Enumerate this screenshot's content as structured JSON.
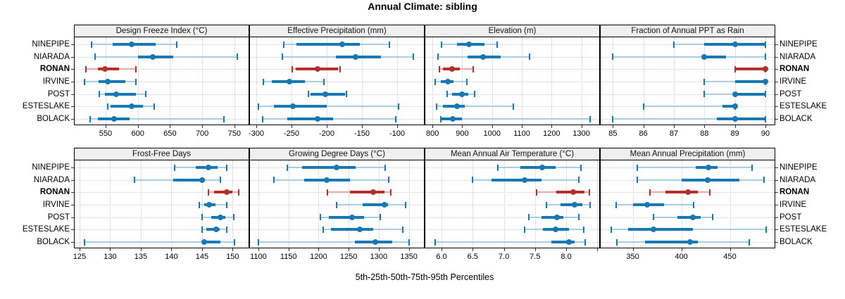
{
  "title": "Annual Climate: sibling",
  "caption": "5th-25th-50th-75th-95th Percentiles",
  "stations": [
    "NINEPIPE",
    "NIARADA",
    "RONAN",
    "IRVINE",
    "POST",
    "ESTESLAKE",
    "BOLACK"
  ],
  "highlight_station": "RONAN",
  "colors": {
    "blue_dark": "#1878b4",
    "blue_light": "#a9cee4",
    "red_dark": "#b2312b",
    "red_light": "#e3aba7",
    "header_bg": "#f0f0f0",
    "panel_border": "#000000",
    "grid": "#c9c9c9"
  },
  "chart_data": {
    "type": "dotplot-percentile-whiskers",
    "percentile_labels": [
      "5th",
      "25th",
      "50th",
      "75th",
      "95th"
    ],
    "legend_note": "thin light line = 5th-95th, thick bar = 25th-75th, dot = 50th percentile",
    "grid": "dotted",
    "panels": [
      {
        "title": "Design Freeze Index (°C)",
        "row": 0,
        "col": 0,
        "xlim": [
          502,
          772
        ],
        "ticks": [
          550,
          600,
          650,
          700,
          750
        ],
        "tick_labels": [
          "550",
          "600",
          "650",
          "700",
          "750"
        ],
        "series": [
          [
            528,
            561,
            590,
            628,
            660
          ],
          [
            534,
            600,
            623,
            655,
            754
          ],
          [
            519,
            538,
            549,
            571,
            597
          ],
          [
            517,
            539,
            553,
            581,
            597
          ],
          [
            540,
            549,
            566,
            597,
            612
          ],
          [
            553,
            558,
            591,
            608,
            626
          ],
          [
            526,
            538,
            563,
            587,
            734
          ]
        ]
      },
      {
        "title": "Effective Precipitation (mm)",
        "row": 0,
        "col": 1,
        "xlim": [
          -309,
          -62
        ],
        "ticks": [
          -300,
          -250,
          -200,
          -150,
          -100
        ],
        "tick_labels": [
          "-300",
          "-250",
          "-200",
          "-150",
          "-100"
        ],
        "series": [
          [
            -261,
            -243,
            -178,
            -153,
            -111
          ],
          [
            -263,
            -187,
            -159,
            -123,
            -77
          ],
          [
            -249,
            -244,
            -213,
            -184,
            -181
          ],
          [
            -290,
            -278,
            -253,
            -231,
            -204
          ],
          [
            -226,
            -223,
            -202,
            -174,
            -172
          ],
          [
            -297,
            -275,
            -248,
            -200,
            -98
          ],
          [
            -291,
            -256,
            -213,
            -191,
            -102
          ]
        ]
      },
      {
        "title": "Elevation (m)",
        "row": 0,
        "col": 2,
        "xlim": [
          776,
          1360
        ],
        "ticks": [
          800,
          900,
          1000,
          1100,
          1200,
          1300
        ],
        "tick_labels": [
          "800",
          "900",
          "1000",
          "1100",
          "1200",
          "1300"
        ],
        "series": [
          [
            830,
            882,
            922,
            975,
            1018
          ],
          [
            818,
            918,
            969,
            1028,
            1127
          ],
          [
            824,
            836,
            867,
            893,
            936
          ],
          [
            810,
            828,
            851,
            871,
            916
          ],
          [
            850,
            867,
            900,
            920,
            942
          ],
          [
            813,
            836,
            883,
            908,
            1072
          ],
          [
            828,
            831,
            869,
            900,
            1329
          ]
        ]
      },
      {
        "title": "Fraction of Annual PPT as Rain",
        "row": 0,
        "col": 3,
        "xlim": [
          84.6,
          90.3
        ],
        "ticks": [
          85,
          86,
          87,
          88,
          89,
          90
        ],
        "tick_labels": [
          "85",
          "86",
          "87",
          "88",
          "89",
          "90"
        ],
        "series": [
          [
            87,
            88,
            89,
            90,
            90
          ],
          [
            85,
            88,
            88,
            88.7,
            90
          ],
          [
            89,
            89,
            90,
            90,
            90
          ],
          [
            88,
            89,
            90,
            90,
            90
          ],
          [
            88,
            89,
            89,
            90,
            90
          ],
          [
            86,
            88.6,
            89,
            89,
            89
          ],
          [
            85,
            88.4,
            89,
            90,
            90
          ]
        ]
      },
      {
        "title": "Frost-Free Days",
        "row": 1,
        "col": 0,
        "xlim": [
          124.2,
          152.6
        ],
        "ticks": [
          125,
          130,
          135,
          140,
          145,
          150
        ],
        "tick_labels": [
          "125",
          "130",
          "135",
          "140",
          "145",
          "150"
        ],
        "series": [
          [
            140.5,
            144,
            146,
            147.5,
            149
          ],
          [
            134,
            140.3,
            145,
            145.5,
            148
          ],
          [
            146,
            147,
            149,
            150,
            151
          ],
          [
            144.5,
            145.3,
            146.2,
            147.2,
            149
          ],
          [
            145,
            146.5,
            148,
            148.8,
            150.2
          ],
          [
            145,
            145.7,
            147.3,
            147.9,
            149
          ],
          [
            125.8,
            145,
            145.3,
            148,
            150.3
          ]
        ]
      },
      {
        "title": "Growing Degree Days (°C)",
        "row": 1,
        "col": 1,
        "xlim": [
          1086,
          1375
        ],
        "ticks": [
          1100,
          1150,
          1200,
          1250,
          1300,
          1350
        ],
        "tick_labels": [
          "1100",
          "1150",
          "1200",
          "1250",
          "1300",
          "1350"
        ],
        "series": [
          [
            1148,
            1172,
            1230,
            1262,
            1311
          ],
          [
            1126,
            1176,
            1213,
            1252,
            1316
          ],
          [
            1215,
            1252,
            1291,
            1310,
            1320
          ],
          [
            1230,
            1273,
            1310,
            1315,
            1345
          ],
          [
            1203,
            1217,
            1256,
            1275,
            1302
          ],
          [
            1208,
            1221,
            1269,
            1291,
            1340
          ],
          [
            1100,
            1260,
            1294,
            1322,
            1350
          ]
        ]
      },
      {
        "title": "Mean Annual Air Temperature (°C)",
        "row": 1,
        "col": 2,
        "xlim": [
          5.74,
          8.53
        ],
        "ticks": [
          6.0,
          6.5,
          7.0,
          7.5,
          8.0,
          8.5
        ],
        "tick_labels": [
          "6.0",
          "6.5",
          "7.0",
          "7.5",
          "8.0",
          ""
        ],
        "series": [
          [
            6.9,
            7.27,
            7.61,
            7.83,
            8.24
          ],
          [
            6.5,
            6.8,
            7.33,
            7.6,
            8.2
          ],
          [
            7.52,
            7.84,
            8.11,
            8.29,
            8.37
          ],
          [
            7.68,
            7.91,
            8.13,
            8.26,
            8.38
          ],
          [
            7.4,
            7.6,
            7.85,
            7.95,
            8.2
          ],
          [
            7.33,
            7.63,
            7.83,
            8.05,
            8.28
          ],
          [
            5.9,
            7.76,
            8.04,
            8.14,
            8.3
          ]
        ]
      },
      {
        "title": "Mean Annual Precipitation (mm)",
        "row": 1,
        "col": 3,
        "xlim": [
          317,
          496
        ],
        "ticks": [
          350,
          400,
          450
        ],
        "tick_labels": [
          "350",
          "400",
          "450"
        ],
        "series": [
          [
            355,
            415,
            428,
            437,
            473
          ],
          [
            355,
            400,
            427,
            460,
            485
          ],
          [
            368,
            384,
            407,
            417,
            429
          ],
          [
            333,
            350,
            365,
            382,
            413
          ],
          [
            371,
            396,
            412,
            420,
            432
          ],
          [
            328,
            345,
            371,
            412,
            487
          ],
          [
            334,
            363,
            409,
            417,
            470
          ]
        ]
      }
    ]
  }
}
